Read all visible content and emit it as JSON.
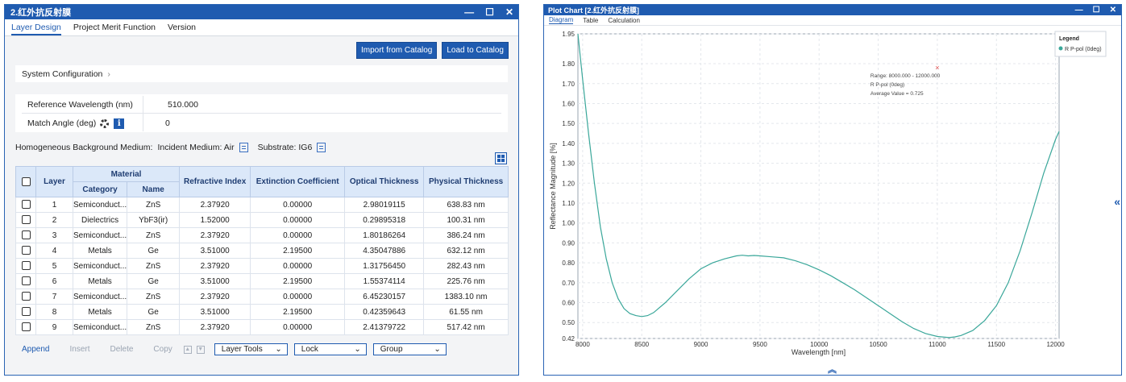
{
  "left": {
    "title": "2.红外抗反射膜",
    "tabs": [
      "Layer Design",
      "Project Merit Function",
      "Version"
    ],
    "buttons": {
      "import": "Import from Catalog",
      "load": "Load to Catalog"
    },
    "system_config": "System Configuration",
    "ref_wavelength_label": "Reference Wavelength (nm)",
    "ref_wavelength_value": "510.000",
    "match_angle_label": "Match Angle (deg)",
    "match_angle_value": "0",
    "bg_medium_label": "Homogeneous Background Medium:",
    "incident_medium": "Incident Medium: Air",
    "substrate": "Substrate: IG6",
    "table": {
      "headers": {
        "layer": "Layer",
        "material": "Material",
        "category": "Category",
        "name": "Name",
        "ri": "Refractive Index",
        "ec": "Extinction Coefficient",
        "ot": "Optical Thickness",
        "pt": "Physical Thickness"
      },
      "rows": [
        {
          "layer": "1",
          "category": "Semiconduct...",
          "name": "ZnS",
          "ri": "2.37920",
          "ec": "0.00000",
          "ot": "2.98019115",
          "pt": "638.83 nm"
        },
        {
          "layer": "2",
          "category": "Dielectrics",
          "name": "YbF3(ir)",
          "ri": "1.52000",
          "ec": "0.00000",
          "ot": "0.29895318",
          "pt": "100.31 nm"
        },
        {
          "layer": "3",
          "category": "Semiconduct...",
          "name": "ZnS",
          "ri": "2.37920",
          "ec": "0.00000",
          "ot": "1.80186264",
          "pt": "386.24 nm"
        },
        {
          "layer": "4",
          "category": "Metals",
          "name": "Ge",
          "ri": "3.51000",
          "ec": "2.19500",
          "ot": "4.35047886",
          "pt": "632.12 nm"
        },
        {
          "layer": "5",
          "category": "Semiconduct...",
          "name": "ZnS",
          "ri": "2.37920",
          "ec": "0.00000",
          "ot": "1.31756450",
          "pt": "282.43 nm"
        },
        {
          "layer": "6",
          "category": "Metals",
          "name": "Ge",
          "ri": "3.51000",
          "ec": "2.19500",
          "ot": "1.55374114",
          "pt": "225.76 nm"
        },
        {
          "layer": "7",
          "category": "Semiconduct...",
          "name": "ZnS",
          "ri": "2.37920",
          "ec": "0.00000",
          "ot": "6.45230157",
          "pt": "1383.10 nm"
        },
        {
          "layer": "8",
          "category": "Metals",
          "name": "Ge",
          "ri": "3.51000",
          "ec": "2.19500",
          "ot": "0.42359643",
          "pt": "61.55 nm"
        },
        {
          "layer": "9",
          "category": "Semiconduct...",
          "name": "ZnS",
          "ri": "2.37920",
          "ec": "0.00000",
          "ot": "2.41379722",
          "pt": "517.42 nm"
        }
      ]
    },
    "actions": {
      "append": "Append",
      "insert": "Insert",
      "delete": "Delete",
      "copy": "Copy",
      "layer_tools": "Layer Tools",
      "lock": "Lock",
      "group": "Group"
    }
  },
  "right": {
    "title": "Plot Chart [2.红外抗反射膜]",
    "tabs": [
      "Diagram",
      "Table",
      "Calculation"
    ]
  },
  "chart_data": {
    "type": "line",
    "xlabel": "Wavelength [nm]",
    "ylabel": "Reflectance Magnitude [%]",
    "xlim": [
      7960,
      12030
    ],
    "ylim": [
      0.42,
      1.95
    ],
    "xticks": [
      8000,
      8500,
      9000,
      9500,
      10000,
      10500,
      11000,
      11500,
      12000
    ],
    "yticks": [
      0.42,
      0.5,
      0.6,
      0.7,
      0.8,
      0.9,
      1.0,
      1.1,
      1.2,
      1.3,
      1.4,
      1.5,
      1.6,
      1.7,
      1.8,
      1.95
    ],
    "ytick_labels": [
      "0.42",
      "0.50",
      "0.60",
      "0.70",
      "0.80",
      "0.90",
      "1.00",
      "1.10",
      "1.20",
      "1.30",
      "1.40",
      "1.50",
      "1.60",
      "1.70",
      "1.80",
      "1.95"
    ],
    "grid": true,
    "legend_title": "Legend",
    "legend_position": "top-right",
    "line_color": "#3aa79a",
    "series": [
      {
        "name": "R P-pol (0deg)",
        "x": [
          7960,
          8000,
          8050,
          8100,
          8150,
          8200,
          8250,
          8300,
          8350,
          8400,
          8450,
          8500,
          8550,
          8600,
          8700,
          8800,
          8900,
          9000,
          9100,
          9200,
          9300,
          9350,
          9400,
          9450,
          9500,
          9600,
          9700,
          9800,
          9900,
          10000,
          10100,
          10200,
          10300,
          10400,
          10500,
          10600,
          10700,
          10800,
          10900,
          11000,
          11100,
          11150,
          11200,
          11300,
          11400,
          11500,
          11600,
          11700,
          11800,
          11900,
          12000,
          12030
        ],
        "y": [
          1.95,
          1.72,
          1.45,
          1.2,
          0.98,
          0.82,
          0.7,
          0.62,
          0.57,
          0.545,
          0.535,
          0.53,
          0.535,
          0.55,
          0.6,
          0.66,
          0.72,
          0.77,
          0.8,
          0.82,
          0.835,
          0.838,
          0.835,
          0.837,
          0.835,
          0.83,
          0.825,
          0.81,
          0.79,
          0.765,
          0.735,
          0.7,
          0.665,
          0.625,
          0.585,
          0.545,
          0.505,
          0.47,
          0.445,
          0.43,
          0.425,
          0.428,
          0.435,
          0.46,
          0.51,
          0.585,
          0.7,
          0.86,
          1.05,
          1.25,
          1.42,
          1.46
        ]
      }
    ],
    "annotation": {
      "x": 11000,
      "y": 1.78,
      "lines": [
        "Range: 8000.000 - 12000.000",
        "R P-pol (0deg)",
        "Average Value = 0.725"
      ]
    }
  }
}
